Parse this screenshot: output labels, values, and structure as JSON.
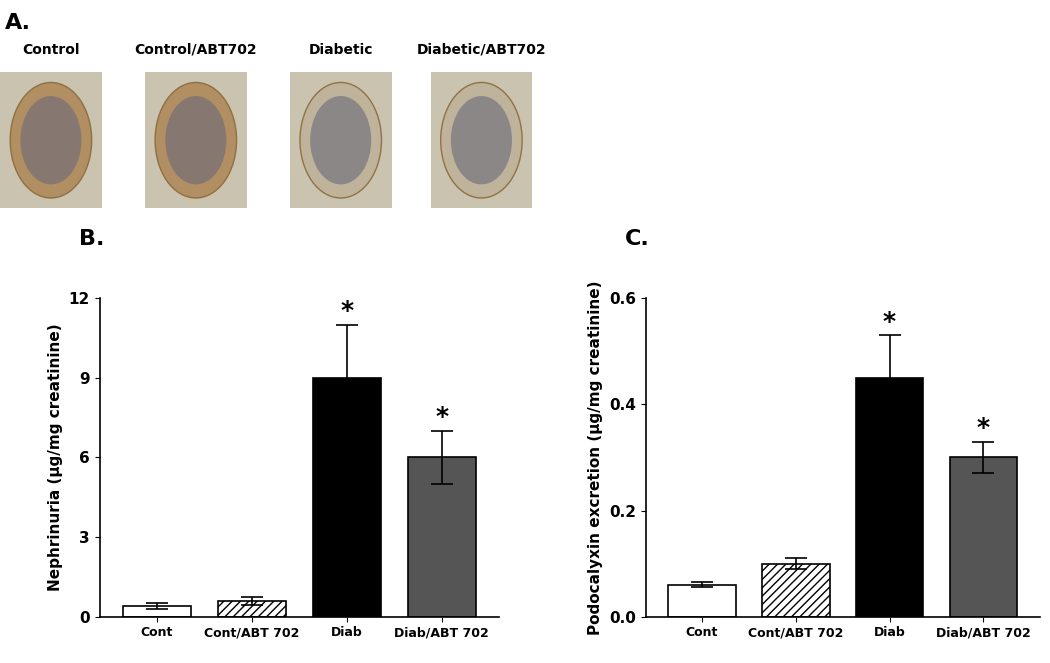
{
  "figure_panels": {
    "label": "A.",
    "images": [
      "Control",
      "Control/ABT702",
      "Diabetic",
      "Diabetic/ABT702"
    ]
  },
  "chart_data": [
    {
      "type": "bar",
      "panel_label": "B.",
      "categories": [
        "Cont",
        "Cont/ABT 702",
        "Diab",
        "Diab/ABT 702"
      ],
      "values": [
        0.4,
        0.6,
        9,
        6
      ],
      "errors": [
        0.1,
        0.15,
        2,
        1
      ],
      "colors": [
        "#ffffff",
        "#ffffff",
        "#000000",
        "#555555"
      ],
      "y_label": "Nephrinuria (μg/mg creatinine)",
      "ylim": [
        0,
        12
      ],
      "yticks": [
        0,
        3,
        6,
        9,
        12
      ],
      "annotations": [
        {
          "category": "Diab",
          "text": "*"
        },
        {
          "category": "Diab/ABT 702",
          "text": "*"
        }
      ]
    },
    {
      "type": "bar",
      "panel_label": "C.",
      "categories": [
        "Cont",
        "Cont/ABT 702",
        "Diab",
        "Diab/ABT 702"
      ],
      "values": [
        0.06,
        0.1,
        0.45,
        0.3
      ],
      "errors": [
        0.005,
        0.01,
        0.08,
        0.03
      ],
      "colors": [
        "#ffffff",
        "#ffffff",
        "#000000",
        "#555555"
      ],
      "y_label": "Podocalyxin excretion (μg/mg creatinine)",
      "ylim": [
        0,
        0.6
      ],
      "yticks": [
        {
          "value": 0,
          "label": "0.0"
        },
        {
          "value": 0.2,
          "label": "0.2"
        },
        {
          "value": 0.4,
          "label": "0.4"
        },
        {
          "value": 0.6,
          "label": "0.6"
        }
      ],
      "annotations": [
        {
          "category": "Diab",
          "text": "*"
        },
        {
          "category": "Diab/ABT 702",
          "text": "*"
        }
      ]
    }
  ]
}
